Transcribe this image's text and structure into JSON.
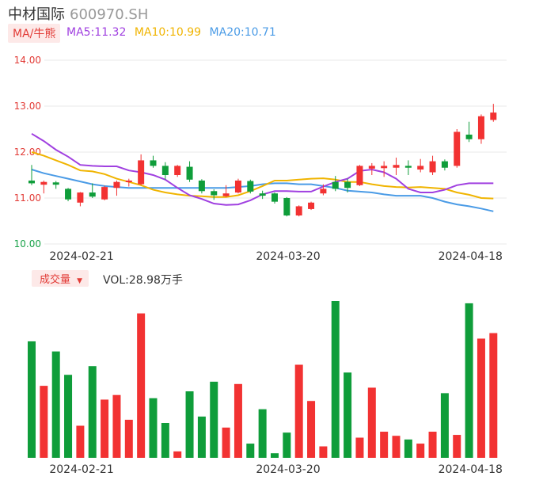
{
  "header": {
    "name": "中材国际",
    "code": "600970.SH"
  },
  "ma_tag": "MA/牛熊",
  "ma": [
    {
      "label": "MA5:11.32",
      "color": "#a040e0"
    },
    {
      "label": "MA10:10.99",
      "color": "#f0b400"
    },
    {
      "label": "MA20:10.71",
      "color": "#4a9be6"
    }
  ],
  "vol_tag": "成交量",
  "vol_text": "VOL:28.98万手",
  "colors": {
    "up": "#f23232",
    "down": "#0f9d3a"
  },
  "chart_data": {
    "type": "candlestick",
    "y_ticks": [
      "14.00",
      "13.00",
      "12.00",
      "11.00",
      "10.00"
    ],
    "ylim": [
      10,
      14
    ],
    "x_ticks": [
      {
        "index": 3,
        "label": "2024-02-21"
      },
      {
        "index": 20,
        "label": "2024-03-20"
      },
      {
        "index": 35,
        "label": "2024-04-18"
      }
    ],
    "candles": [
      {
        "o": 11.38,
        "c": 11.32,
        "h": 11.72,
        "l": 11.28,
        "vol": 2.54,
        "up": false
      },
      {
        "o": 11.29,
        "c": 11.35,
        "h": 11.38,
        "l": 11.1,
        "vol": 1.57,
        "up": true
      },
      {
        "o": 11.34,
        "c": 11.29,
        "h": 11.37,
        "l": 11.2,
        "vol": 2.32,
        "up": false
      },
      {
        "o": 11.2,
        "c": 10.97,
        "h": 11.22,
        "l": 10.93,
        "vol": 1.81,
        "up": false
      },
      {
        "o": 10.9,
        "c": 11.12,
        "h": 11.13,
        "l": 10.82,
        "vol": 0.7,
        "up": true
      },
      {
        "o": 11.12,
        "c": 11.03,
        "h": 11.32,
        "l": 11.0,
        "vol": 2.0,
        "up": false
      },
      {
        "o": 10.97,
        "c": 11.24,
        "h": 11.27,
        "l": 10.95,
        "vol": 1.27,
        "up": true
      },
      {
        "o": 11.22,
        "c": 11.35,
        "h": 11.38,
        "l": 11.05,
        "vol": 1.37,
        "up": true
      },
      {
        "o": 11.35,
        "c": 11.38,
        "h": 11.42,
        "l": 11.25,
        "vol": 0.83,
        "up": true
      },
      {
        "o": 11.3,
        "c": 11.82,
        "h": 11.95,
        "l": 11.28,
        "vol": 3.15,
        "up": true
      },
      {
        "o": 11.82,
        "c": 11.7,
        "h": 11.92,
        "l": 11.66,
        "vol": 1.3,
        "up": false
      },
      {
        "o": 11.7,
        "c": 11.5,
        "h": 11.78,
        "l": 11.4,
        "vol": 0.76,
        "up": false
      },
      {
        "o": 11.5,
        "c": 11.7,
        "h": 11.72,
        "l": 11.46,
        "vol": 0.14,
        "up": true
      },
      {
        "o": 11.68,
        "c": 11.4,
        "h": 11.8,
        "l": 11.35,
        "vol": 1.45,
        "up": false
      },
      {
        "o": 11.38,
        "c": 11.15,
        "h": 11.41,
        "l": 11.1,
        "vol": 0.9,
        "up": false
      },
      {
        "o": 11.15,
        "c": 11.06,
        "h": 11.19,
        "l": 10.96,
        "vol": 1.66,
        "up": false
      },
      {
        "o": 11.04,
        "c": 11.1,
        "h": 11.28,
        "l": 11.02,
        "vol": 0.66,
        "up": true
      },
      {
        "o": 11.12,
        "c": 11.38,
        "h": 11.42,
        "l": 11.1,
        "vol": 1.61,
        "up": true
      },
      {
        "o": 11.37,
        "c": 11.14,
        "h": 11.4,
        "l": 11.1,
        "vol": 0.31,
        "up": false
      },
      {
        "o": 11.1,
        "c": 11.05,
        "h": 11.16,
        "l": 10.98,
        "vol": 1.06,
        "up": false
      },
      {
        "o": 11.1,
        "c": 10.92,
        "h": 11.12,
        "l": 10.88,
        "vol": 0.1,
        "up": false
      },
      {
        "o": 11.0,
        "c": 10.62,
        "h": 11.02,
        "l": 10.6,
        "vol": 0.55,
        "up": false
      },
      {
        "o": 10.62,
        "c": 10.82,
        "h": 10.84,
        "l": 10.6,
        "vol": 2.03,
        "up": true
      },
      {
        "o": 10.76,
        "c": 10.9,
        "h": 10.92,
        "l": 10.74,
        "vol": 1.24,
        "up": true
      },
      {
        "o": 11.1,
        "c": 11.2,
        "h": 11.3,
        "l": 11.06,
        "vol": 0.25,
        "up": true
      },
      {
        "o": 11.35,
        "c": 11.2,
        "h": 11.48,
        "l": 11.15,
        "vol": 3.42,
        "up": false
      },
      {
        "o": 11.35,
        "c": 11.22,
        "h": 11.42,
        "l": 11.12,
        "vol": 1.86,
        "up": false
      },
      {
        "o": 11.28,
        "c": 11.7,
        "h": 11.72,
        "l": 11.26,
        "vol": 0.44,
        "up": true
      },
      {
        "o": 11.64,
        "c": 11.7,
        "h": 11.76,
        "l": 11.5,
        "vol": 1.53,
        "up": true
      },
      {
        "o": 11.65,
        "c": 11.7,
        "h": 11.8,
        "l": 11.46,
        "vol": 0.57,
        "up": true
      },
      {
        "o": 11.66,
        "c": 11.72,
        "h": 11.88,
        "l": 11.5,
        "vol": 0.48,
        "up": true
      },
      {
        "o": 11.7,
        "c": 11.66,
        "h": 11.82,
        "l": 11.5,
        "vol": 0.4,
        "up": false
      },
      {
        "o": 11.62,
        "c": 11.7,
        "h": 11.85,
        "l": 11.56,
        "vol": 0.31,
        "up": true
      },
      {
        "o": 11.56,
        "c": 11.8,
        "h": 11.92,
        "l": 11.5,
        "vol": 0.57,
        "up": true
      },
      {
        "o": 11.8,
        "c": 11.66,
        "h": 11.84,
        "l": 11.6,
        "vol": 1.41,
        "up": false
      },
      {
        "o": 11.7,
        "c": 12.44,
        "h": 12.5,
        "l": 11.66,
        "vol": 0.5,
        "up": true
      },
      {
        "o": 12.38,
        "c": 12.28,
        "h": 12.66,
        "l": 12.22,
        "vol": 3.37,
        "up": false
      },
      {
        "o": 12.28,
        "c": 12.78,
        "h": 12.82,
        "l": 12.18,
        "vol": 2.6,
        "up": true
      },
      {
        "o": 12.7,
        "c": 12.86,
        "h": 13.05,
        "l": 12.66,
        "vol": 2.72,
        "up": true
      }
    ],
    "ma5": [
      12.4,
      12.24,
      12.05,
      11.9,
      11.72,
      11.7,
      11.69,
      11.69,
      11.6,
      11.56,
      11.5,
      11.4,
      11.22,
      11.06,
      10.98,
      10.88,
      10.85,
      10.86,
      10.95,
      11.08,
      11.15,
      11.15,
      11.14,
      11.14,
      11.25,
      11.35,
      11.42,
      11.59,
      11.62,
      11.56,
      11.42,
      11.2,
      11.12,
      11.12,
      11.18,
      11.28,
      11.32,
      11.32,
      11.32
    ],
    "ma10": [
      12.0,
      11.92,
      11.82,
      11.72,
      11.6,
      11.58,
      11.52,
      11.42,
      11.35,
      11.28,
      11.18,
      11.12,
      11.08,
      11.05,
      11.04,
      11.02,
      11.02,
      11.06,
      11.15,
      11.26,
      11.38,
      11.38,
      11.4,
      11.42,
      11.43,
      11.4,
      11.35,
      11.35,
      11.3,
      11.26,
      11.24,
      11.23,
      11.24,
      11.22,
      11.2,
      11.12,
      11.07,
      11.0,
      10.99
    ],
    "ma20": [
      11.62,
      11.54,
      11.48,
      11.42,
      11.36,
      11.3,
      11.26,
      11.24,
      11.22,
      11.22,
      11.22,
      11.22,
      11.22,
      11.22,
      11.22,
      11.22,
      11.22,
      11.24,
      11.26,
      11.3,
      11.32,
      11.32,
      11.3,
      11.3,
      11.26,
      11.22,
      11.16,
      11.14,
      11.12,
      11.08,
      11.05,
      11.05,
      11.05,
      11.0,
      10.92,
      10.86,
      10.82,
      10.77,
      10.71
    ]
  }
}
